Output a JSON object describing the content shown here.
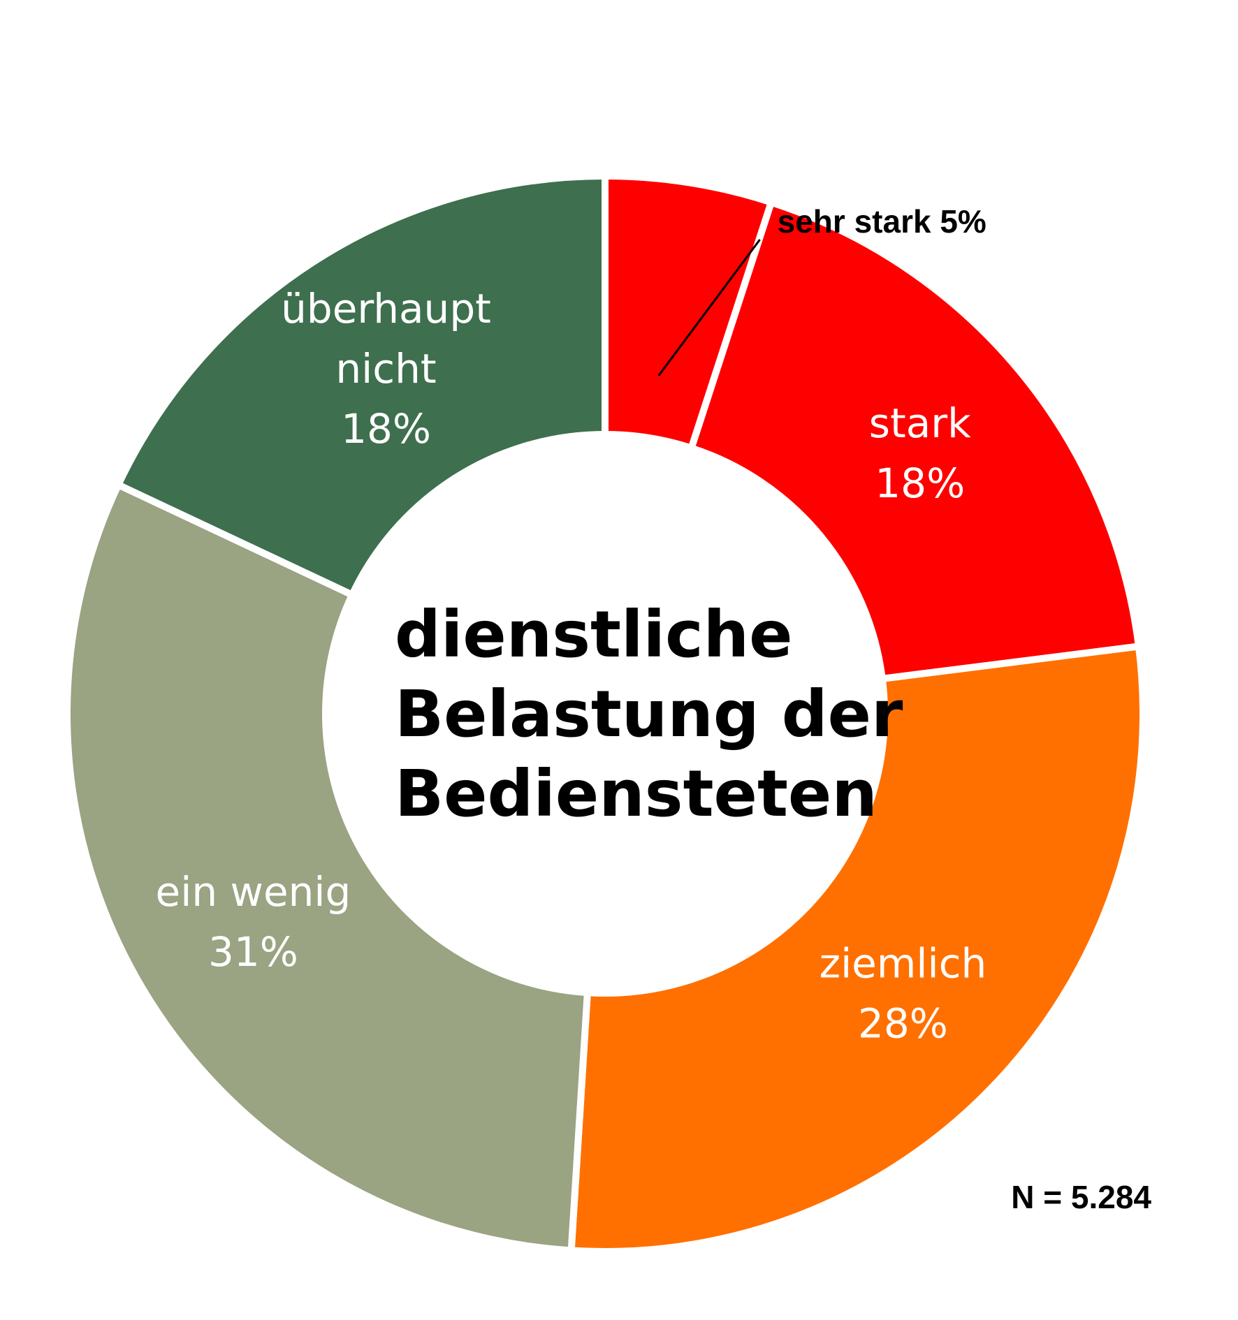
{
  "chart_data": {
    "type": "pie",
    "variant": "donut",
    "title": "dienstliche Belastung der Bediensteten",
    "title_lines": [
      "dienstliche",
      "Belastung der",
      "Bediensteten"
    ],
    "unit": "%",
    "categories": [
      "sehr stark",
      "stark",
      "ziemlich",
      "ein wenig",
      "überhaupt nicht"
    ],
    "values": [
      5,
      18,
      28,
      31,
      18
    ],
    "colors": [
      "#ff0000",
      "#ff0000",
      "#ff7000",
      "#9aa382",
      "#3e6f4e"
    ],
    "segment_labels": [
      [
        "sehr stark 5%"
      ],
      [
        "stark",
        "18%"
      ],
      [
        "ziemlich",
        "28%"
      ],
      [
        "ein wenig",
        "31%"
      ],
      [
        "überhaupt",
        "nicht",
        "18%"
      ]
    ],
    "callout_segment": 0,
    "legend": "none",
    "note": "N = 5.284"
  }
}
